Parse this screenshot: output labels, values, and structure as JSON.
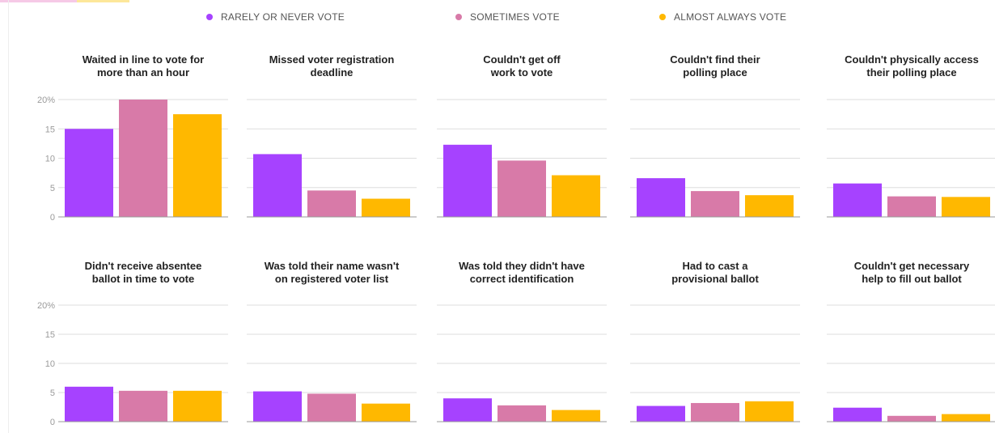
{
  "colors": {
    "rarely": "#a642ff",
    "sometimes": "#d87aa8",
    "almost": "#ffb800",
    "gridline": "#dddddd",
    "baseline": "#999999"
  },
  "legend": [
    {
      "label": "RARELY OR NEVER VOTE",
      "color": "#a642ff"
    },
    {
      "label": "SOMETIMES VOTE",
      "color": "#d87aa8"
    },
    {
      "label": "ALMOST ALWAYS VOTE",
      "color": "#ffb800"
    }
  ],
  "chart_data": {
    "type": "bar",
    "layout": "small-multiples",
    "ylim": [
      0,
      20
    ],
    "y_ticks": [
      "0",
      "5",
      "10",
      "15",
      "20%"
    ],
    "series_names": [
      "RARELY OR NEVER VOTE",
      "SOMETIMES VOTE",
      "ALMOST ALWAYS VOTE"
    ],
    "grid": true,
    "legend_position": "top",
    "panels": [
      {
        "title": [
          "Waited in line to vote for",
          "more than an hour"
        ],
        "values": [
          15,
          20,
          17.5
        ]
      },
      {
        "title": [
          "Missed voter registration",
          "deadline"
        ],
        "values": [
          10.7,
          4.5,
          3.1
        ]
      },
      {
        "title": [
          "Couldn't get off",
          "work to vote"
        ],
        "values": [
          12.3,
          9.6,
          7.1
        ]
      },
      {
        "title": [
          "Couldn't find their",
          "polling place"
        ],
        "values": [
          6.6,
          4.4,
          3.7
        ]
      },
      {
        "title": [
          "Couldn't physically access",
          "their polling place"
        ],
        "values": [
          5.7,
          3.5,
          3.4
        ]
      },
      {
        "title": [
          "Didn't receive absentee",
          "ballot in time to vote"
        ],
        "values": [
          6.0,
          5.3,
          5.3
        ]
      },
      {
        "title": [
          "Was told their name wasn't",
          "on registered voter list"
        ],
        "values": [
          5.2,
          4.8,
          3.1
        ]
      },
      {
        "title": [
          "Was told they didn't have",
          "correct identification"
        ],
        "values": [
          4.0,
          2.8,
          2.0
        ]
      },
      {
        "title": [
          "Had to cast a",
          "provisional ballot"
        ],
        "values": [
          2.7,
          3.2,
          3.5
        ]
      },
      {
        "title": [
          "Couldn't get necessary",
          "help to fill out ballot"
        ],
        "values": [
          2.4,
          1.0,
          1.3
        ]
      }
    ]
  }
}
